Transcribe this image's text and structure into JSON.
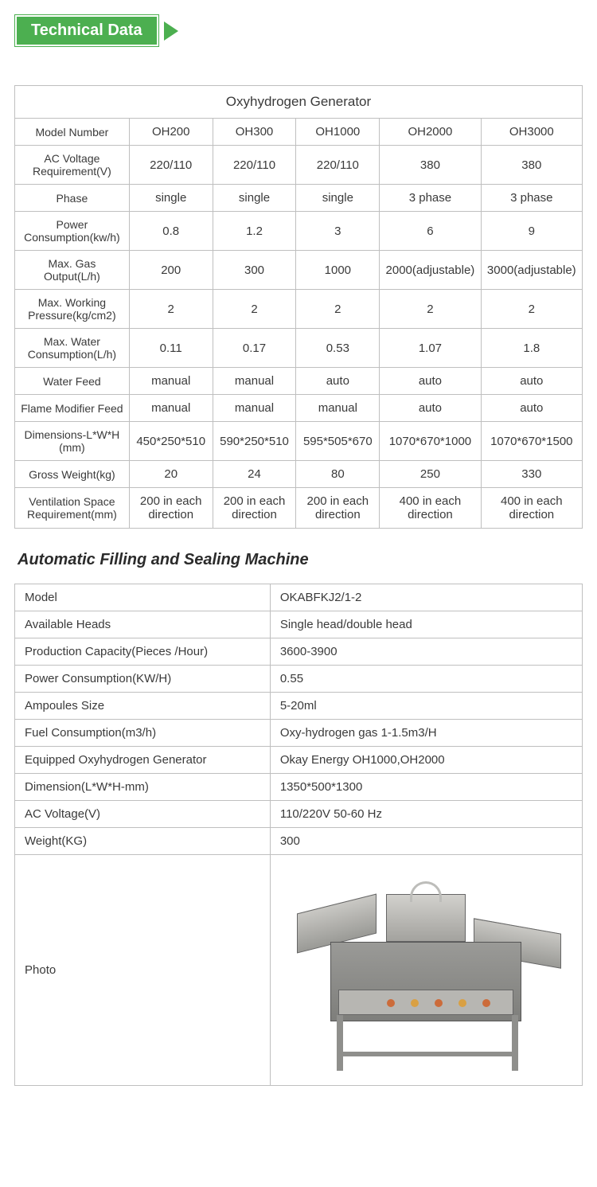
{
  "badge": {
    "label": "Technical Data"
  },
  "table1": {
    "title": "Oxyhydrogen Generator",
    "columns": [
      "OH200",
      "OH300",
      "OH1000",
      "OH2000",
      "OH3000"
    ],
    "rows": [
      {
        "label": "Model Number",
        "vals": [
          "OH200",
          "OH300",
          "OH1000",
          "OH2000",
          "OH3000"
        ]
      },
      {
        "label": "AC Voltage Requirement(V)",
        "vals": [
          "220/110",
          "220/110",
          "220/110",
          "380",
          "380"
        ]
      },
      {
        "label": "Phase",
        "vals": [
          "single",
          "single",
          "single",
          "3 phase",
          "3 phase"
        ]
      },
      {
        "label": "Power Consumption(kw/h)",
        "vals": [
          "0.8",
          "1.2",
          "3",
          "6",
          "9"
        ]
      },
      {
        "label": "Max. Gas Output(L/h)",
        "vals": [
          "200",
          "300",
          "1000",
          "2000(adjustable)",
          "3000(adjustable)"
        ]
      },
      {
        "label": "Max. Working Pressure(kg/cm2)",
        "vals": [
          "2",
          "2",
          "2",
          "2",
          "2"
        ]
      },
      {
        "label": "Max. Water Consumption(L/h)",
        "vals": [
          "0.11",
          "0.17",
          "0.53",
          "1.07",
          "1.8"
        ]
      },
      {
        "label": "Water Feed",
        "vals": [
          "manual",
          "manual",
          "auto",
          "auto",
          "auto"
        ]
      },
      {
        "label": "Flame Modifier Feed",
        "vals": [
          "manual",
          "manual",
          "manual",
          "auto",
          "auto"
        ]
      },
      {
        "label": "Dimensions-L*W*H (mm)",
        "vals": [
          "450*250*510",
          "590*250*510",
          "595*505*670",
          "1070*670*1000",
          "1070*670*1500"
        ]
      },
      {
        "label": "Gross Weight(kg)",
        "vals": [
          "20",
          "24",
          "80",
          "250",
          "330"
        ]
      },
      {
        "label": "Ventilation Space Requirement(mm)",
        "vals": [
          "200 in each direction",
          "200 in each direction",
          "200 in each direction",
          "400 in each direction",
          "400 in each direction"
        ]
      }
    ]
  },
  "section2_title": "Automatic  Filling and Sealing Machine",
  "table2": {
    "rows": [
      {
        "k": "Model",
        "v": "OKABFKJ2/1-2"
      },
      {
        "k": "Available Heads",
        "v": "Single head/double head"
      },
      {
        "k": "Production Capacity(Pieces /Hour)",
        "v": "3600-3900"
      },
      {
        "k": "Power Consumption(KW/H)",
        "v": "0.55"
      },
      {
        "k": "Ampoules Size",
        "v": "5-20ml"
      },
      {
        "k": "Fuel Consumption(m3/h)",
        "v": "Oxy-hydrogen gas 1-1.5m3/H"
      },
      {
        "k": "Equipped Oxyhydrogen Generator",
        "v": "Okay Energy OH1000,OH2000"
      },
      {
        "k": "Dimension(L*W*H-mm)",
        "v": "1350*500*1300"
      },
      {
        "k": "AC Voltage(V)",
        "v": "110/220V 50-60 Hz"
      },
      {
        "k": "Weight(KG)",
        "v": "300"
      }
    ],
    "photo_label": "Photo"
  },
  "style": {
    "accent": "#4caf50",
    "border": "#bfbfbf",
    "text": "#3a3a3a",
    "background": "#ffffff"
  }
}
